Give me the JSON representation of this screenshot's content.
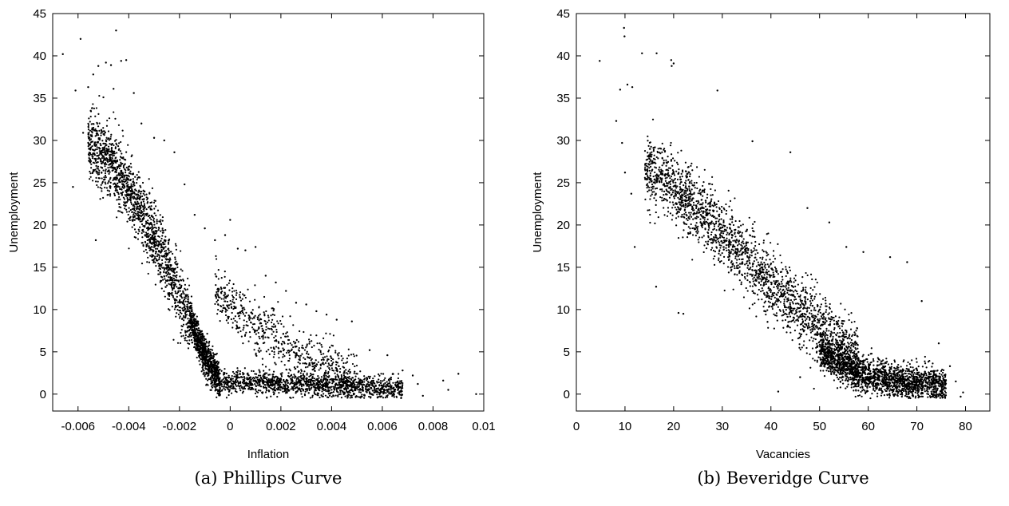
{
  "chart_data": [
    {
      "type": "scatter",
      "caption": "(a) Phillips Curve",
      "xlabel": "Inflation",
      "ylabel": "Unemployment",
      "xlim": [
        -0.007,
        0.01
      ],
      "ylim": [
        -2,
        45
      ],
      "xticks": [
        -0.006,
        -0.004,
        -0.002,
        0,
        0.002,
        0.004,
        0.006,
        0.008,
        0.01
      ],
      "xtick_labels": [
        "-0.006",
        "-0.004",
        "-0.002",
        "0",
        "0.002",
        "0.004",
        "0.006",
        "0.008",
        "0.01"
      ],
      "yticks": [
        0,
        5,
        10,
        15,
        20,
        25,
        30,
        35,
        40,
        45
      ],
      "ytick_labels": [
        "0",
        "5",
        "10",
        "15",
        "20",
        "25",
        "30",
        "35",
        "40",
        "45"
      ],
      "grid": false,
      "points": [
        [
          -0.0066,
          40.2
        ],
        [
          -0.0059,
          42.0
        ],
        [
          -0.0045,
          43.0
        ],
        [
          -0.0062,
          24.5
        ],
        [
          -0.0061,
          35.9
        ],
        [
          -0.0056,
          36.3
        ],
        [
          -0.0054,
          37.8
        ],
        [
          -0.0052,
          38.8
        ],
        [
          -0.0049,
          39.2
        ],
        [
          -0.0047,
          38.9
        ],
        [
          -0.0043,
          39.4
        ],
        [
          -0.0041,
          39.5
        ],
        [
          -0.0053,
          18.2
        ],
        [
          -0.0058,
          30.9
        ],
        [
          -0.0055,
          33.5
        ],
        [
          -0.005,
          35.1
        ],
        [
          -0.0046,
          36.1
        ],
        [
          -0.0038,
          35.6
        ],
        [
          -0.0035,
          32.0
        ],
        [
          -0.003,
          30.3
        ],
        [
          -0.0026,
          30.0
        ],
        [
          -0.0022,
          28.6
        ],
        [
          -0.0018,
          24.8
        ],
        [
          -0.0014,
          21.2
        ],
        [
          -0.001,
          19.6
        ],
        [
          -0.0006,
          18.2
        ],
        [
          -0.0002,
          18.8
        ],
        [
          0.0,
          20.6
        ],
        [
          0.0003,
          17.2
        ],
        [
          0.0006,
          17.0
        ],
        [
          0.001,
          17.4
        ],
        [
          0.0014,
          14.0
        ],
        [
          0.0018,
          13.2
        ],
        [
          0.0022,
          12.2
        ],
        [
          0.0026,
          10.8
        ],
        [
          0.003,
          10.6
        ],
        [
          0.0034,
          9.8
        ],
        [
          0.0038,
          9.4
        ],
        [
          0.0042,
          8.8
        ],
        [
          0.0048,
          8.6
        ],
        [
          0.0055,
          5.2
        ],
        [
          0.0062,
          4.6
        ],
        [
          0.0068,
          2.8
        ],
        [
          0.0072,
          2.2
        ],
        [
          0.0074,
          1.2
        ],
        [
          0.0084,
          1.6
        ],
        [
          0.0086,
          0.5
        ],
        [
          0.009,
          2.4
        ],
        [
          0.0097,
          0.0
        ],
        [
          0.0076,
          -0.2
        ]
      ],
      "bulk_points": [
        {
          "count": 1500,
          "x_range": [
            -0.0056,
            -0.0016
          ],
          "y_curve": [
            [
              -0.0056,
              30.0
            ],
            [
              -0.0046,
              27.0
            ],
            [
              -0.0036,
              22.0
            ],
            [
              -0.0026,
              16.0
            ],
            [
              -0.0016,
              9.0
            ]
          ],
          "spread": 4.0
        },
        {
          "count": 900,
          "x_range": [
            -0.0016,
            -0.0004
          ],
          "y_curve": [
            [
              -0.0016,
              9.0
            ],
            [
              -0.001,
              4.5
            ],
            [
              -0.0004,
              1.5
            ]
          ],
          "spread": 2.2
        },
        {
          "count": 1300,
          "x_range": [
            -0.0004,
            0.0068
          ],
          "y_curve": [
            [
              -0.0004,
              1.5
            ],
            [
              0.0068,
              0.6
            ]
          ],
          "spread": 1.4
        },
        {
          "count": 700,
          "x_range": [
            -0.0006,
            0.005
          ],
          "y_curve": [
            [
              -0.0006,
              12.0
            ],
            [
              0.001,
              8.0
            ],
            [
              0.003,
              4.0
            ],
            [
              0.005,
              2.0
            ]
          ],
          "spread": 3.2
        }
      ]
    },
    {
      "type": "scatter",
      "caption": "(b) Beveridge Curve",
      "xlabel": "Vacancies",
      "ylabel": "Unemployment",
      "xlim": [
        0,
        85
      ],
      "ylim": [
        -2,
        45
      ],
      "xticks": [
        0,
        10,
        20,
        30,
        40,
        50,
        60,
        70,
        80
      ],
      "xtick_labels": [
        "0",
        "10",
        "20",
        "30",
        "40",
        "50",
        "60",
        "70",
        "80"
      ],
      "yticks": [
        0,
        5,
        10,
        15,
        20,
        25,
        30,
        35,
        40,
        45
      ],
      "ytick_labels": [
        "0",
        "5",
        "10",
        "15",
        "20",
        "25",
        "30",
        "35",
        "40",
        "45"
      ],
      "grid": false,
      "points": [
        [
          4.8,
          39.4
        ],
        [
          9.8,
          43.3
        ],
        [
          9.9,
          42.3
        ],
        [
          8.2,
          32.3
        ],
        [
          9.0,
          36.0
        ],
        [
          10.5,
          36.6
        ],
        [
          11.5,
          36.3
        ],
        [
          13.5,
          40.3
        ],
        [
          16.5,
          40.3
        ],
        [
          19.5,
          39.5
        ],
        [
          19.6,
          38.8
        ],
        [
          20.0,
          39.1
        ],
        [
          9.4,
          29.7
        ],
        [
          10.0,
          26.2
        ],
        [
          11.3,
          23.7
        ],
        [
          12.0,
          17.4
        ],
        [
          16.4,
          12.7
        ],
        [
          21.0,
          9.6
        ],
        [
          22.0,
          9.5
        ],
        [
          29.0,
          35.9
        ],
        [
          36.2,
          29.9
        ],
        [
          44.0,
          28.6
        ],
        [
          47.5,
          22.0
        ],
        [
          52.0,
          20.3
        ],
        [
          55.5,
          17.4
        ],
        [
          59.0,
          16.8
        ],
        [
          64.5,
          16.2
        ],
        [
          68.0,
          15.6
        ],
        [
          71.0,
          11.0
        ],
        [
          74.5,
          6.0
        ],
        [
          76.8,
          3.3
        ],
        [
          78.0,
          1.5
        ],
        [
          79.5,
          0.2
        ],
        [
          79.0,
          -0.3
        ],
        [
          41.5,
          0.3
        ],
        [
          46.0,
          2.0
        ]
      ],
      "bulk_points": [
        {
          "count": 2200,
          "x_range": [
            14,
            58
          ],
          "y_curve": [
            [
              14,
              27.0
            ],
            [
              25,
              22.0
            ],
            [
              35,
              16.0
            ],
            [
              45,
              10.5
            ],
            [
              58,
              4.0
            ]
          ],
          "spread": 4.0
        },
        {
          "count": 1800,
          "x_range": [
            50,
            76
          ],
          "y_curve": [
            [
              50,
              5.0
            ],
            [
              58,
              2.5
            ],
            [
              66,
              1.5
            ],
            [
              76,
              1.0
            ]
          ],
          "spread": 2.0
        }
      ]
    }
  ]
}
